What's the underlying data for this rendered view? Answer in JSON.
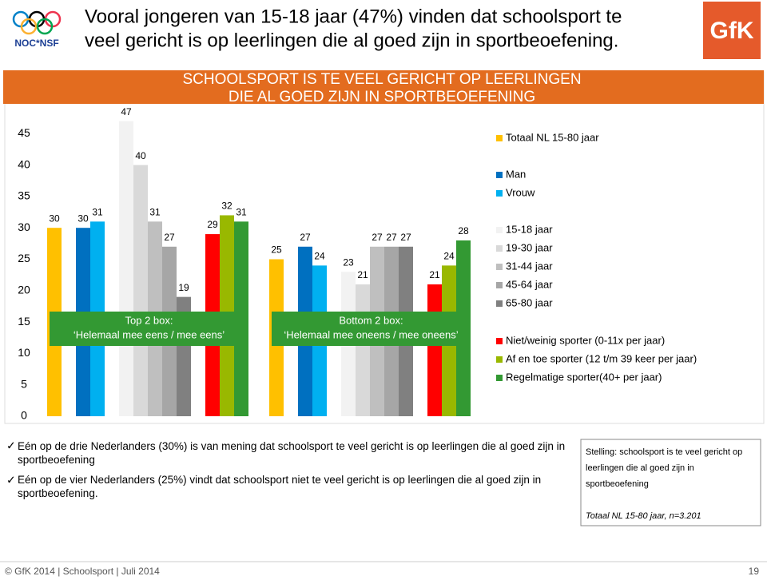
{
  "header": {
    "title": [
      "Vooral jongeren van 15-18 jaar (47%) vinden dat schoolsport te",
      "veel gericht is op leerlingen die al goed zijn in sportbeoefening."
    ],
    "logo_left": "NOC*NSF",
    "logo_right": "GfK"
  },
  "chart_data": {
    "type": "bar",
    "title": [
      "SCHOOLSPORT IS TE VEEL GERICHT OP LEERLINGEN",
      "DIE AL GOED ZIJN IN SPORTBEOEFENING"
    ],
    "categories": [
      "Top 2 box:",
      "Bottom 2 box:"
    ],
    "category_details": [
      "‘Helemaal mee eens / mee eens’",
      "‘Helemaal mee oneens / mee oneens’"
    ],
    "ylim": [
      0,
      50
    ],
    "yticks": [
      0,
      5,
      10,
      15,
      20,
      25,
      30,
      35,
      40,
      45
    ],
    "series": [
      {
        "name": "Totaal NL 15-80 jaar",
        "color": "#ffc000",
        "values": [
          30,
          25
        ]
      },
      {
        "name": "Man",
        "color": "#0070c0",
        "values": [
          30,
          27
        ]
      },
      {
        "name": "Vrouw",
        "color": "#00b0f0",
        "values": [
          31,
          24
        ]
      },
      {
        "name": "15-18 jaar",
        "color": "#f2f2f2",
        "values": [
          47,
          23
        ]
      },
      {
        "name": "19-30 jaar",
        "color": "#d9d9d9",
        "values": [
          40,
          21
        ]
      },
      {
        "name": "31-44 jaar",
        "color": "#bfbfbf",
        "values": [
          31,
          27
        ]
      },
      {
        "name": "45-64 jaar",
        "color": "#a6a6a6",
        "values": [
          27,
          27
        ]
      },
      {
        "name": "65-80 jaar",
        "color": "#808080",
        "values": [
          19,
          27
        ]
      },
      {
        "name": "Niet/weinig sporter (0-11x per jaar)",
        "color": "#ff0000",
        "values": [
          29,
          21
        ]
      },
      {
        "name": "Af en toe sporter (12 t/m 39 keer per jaar)",
        "color": "#99b800",
        "values": [
          32,
          24
        ]
      },
      {
        "name": "Regelmatige sporter(40+ per jaar)",
        "color": "#339933",
        "values": [
          31,
          28
        ]
      }
    ]
  },
  "notes": [
    "Eén op de drie Nederlanders (30%) is van mening dat schoolsport te veel gericht is op leerlingen die al goed zijn in sportbeoefening",
    "Eén op de vier Nederlanders (25%) vindt dat schoolsport niet te veel gericht is op leerlingen die al goed zijn in sportbeoefening."
  ],
  "statement": {
    "text": "Stelling: schoolsport is te veel gericht op leerlingen die al goed zijn in sportbeoefening",
    "base": "Totaal NL 15-80  jaar,  n=3.201"
  },
  "footer": {
    "left": "© GfK 2014 | Schoolsport | Juli 2014",
    "page": "19"
  }
}
